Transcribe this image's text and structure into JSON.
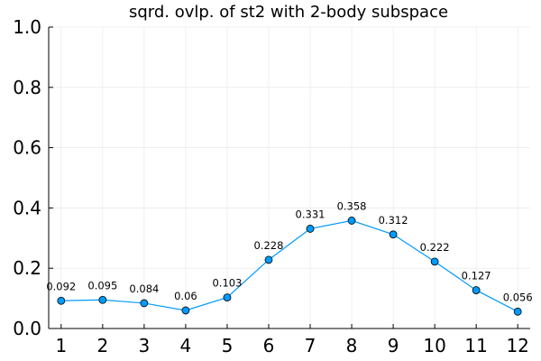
{
  "chart_data": {
    "type": "line",
    "title": "sqrd. ovlp. of st2 with 2-body subspace",
    "xlabel": "",
    "ylabel": "",
    "x": [
      1,
      2,
      3,
      4,
      5,
      6,
      7,
      8,
      9,
      10,
      11,
      12
    ],
    "series": [
      {
        "values": [
          0.092,
          0.095,
          0.084,
          0.06,
          0.103,
          0.228,
          0.331,
          0.358,
          0.312,
          0.222,
          0.127,
          0.056
        ],
        "labels": [
          "0.092",
          "0.095",
          "0.084",
          "0.06",
          "0.103",
          "0.228",
          "0.331",
          "0.358",
          "0.312",
          "0.222",
          "0.127",
          "0.056"
        ]
      }
    ],
    "xticks": [
      "1",
      "2",
      "3",
      "4",
      "5",
      "6",
      "7",
      "8",
      "9",
      "10",
      "11",
      "12"
    ],
    "yticks": [
      "0.0",
      "0.2",
      "0.4",
      "0.6",
      "0.8",
      "1.0"
    ],
    "ytick_values": [
      0,
      0.2,
      0.4,
      0.6,
      0.8,
      1.0
    ],
    "ylim": [
      0,
      1.0
    ],
    "xlim": [
      0.7,
      12.3
    ],
    "grid": true,
    "legend": "none",
    "colors": {
      "line": "#009AFA",
      "marker": "#009AFA",
      "marker_edge": "#000000",
      "grid": "#e6e6e6",
      "axis": "#000000"
    }
  }
}
